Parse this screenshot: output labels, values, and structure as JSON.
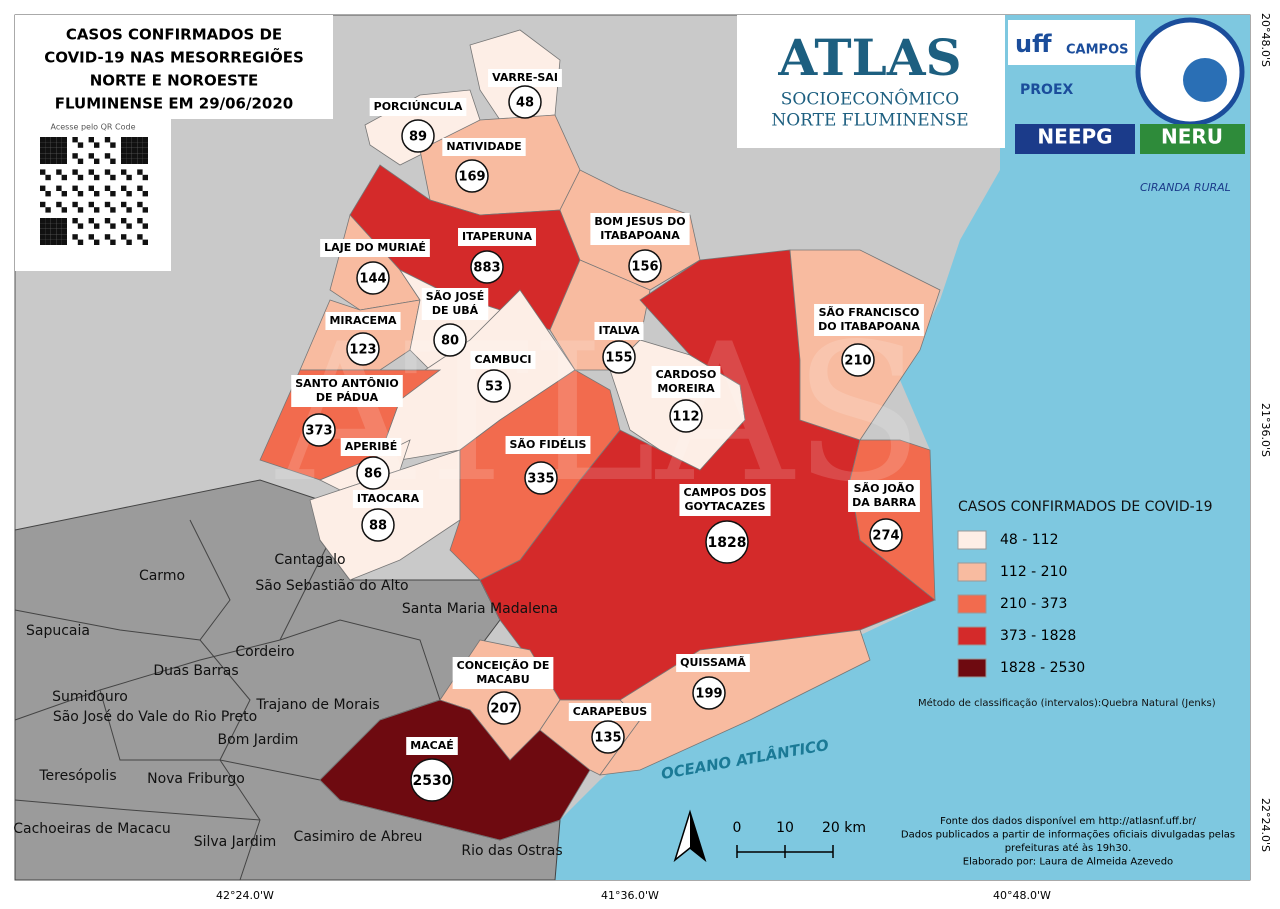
{
  "title": [
    "CASOS CONFIRMADOS DE",
    "COVID-19 NAS MESORREGIÕES",
    "NORTE E NOROESTE",
    "FLUMINENSE EM 29/06/2020"
  ],
  "qr_caption": "Acesse pelo QR Code",
  "logos": {
    "atlas": "ATLAS",
    "atlas_sub1": "SOCIOECONÔMICO",
    "atlas_sub2": "NORTE FLUMINENSE",
    "uff": "uff",
    "uff_campos": "CAMPOS",
    "proex": "PROEX",
    "neepg": "NEEPG",
    "neru": "NERU",
    "ciranda": "CIRANDA RURAL"
  },
  "municipalities": [
    {
      "name": [
        "VARRE-SAI"
      ],
      "cases": 48,
      "color": "#fdeee6"
    },
    {
      "name": [
        "PORCIÚNCULA"
      ],
      "cases": 89,
      "color": "#fdeee6"
    },
    {
      "name": [
        "NATIVIDADE"
      ],
      "cases": 169,
      "color": "#f8bba0"
    },
    {
      "name": [
        "ITAPERUNA"
      ],
      "cases": 883,
      "color": "#d42a2a"
    },
    {
      "name": [
        "BOM JESUS DO",
        "ITABAPOANA"
      ],
      "cases": 156,
      "color": "#f8bba0"
    },
    {
      "name": [
        "LAJE DO MURIAÉ"
      ],
      "cases": 144,
      "color": "#f8bba0"
    },
    {
      "name": [
        "MIRACEMA"
      ],
      "cases": 123,
      "color": "#f8bba0"
    },
    {
      "name": [
        "SÃO JOSÉ",
        "DE UBÁ"
      ],
      "cases": 80,
      "color": "#fdeee6"
    },
    {
      "name": [
        "CAMBUCI"
      ],
      "cases": 53,
      "color": "#fdeee6"
    },
    {
      "name": [
        "ITALVA"
      ],
      "cases": 155,
      "color": "#f8bba0"
    },
    {
      "name": [
        "CARDOSO",
        "MOREIRA"
      ],
      "cases": 112,
      "color": "#fdeee6"
    },
    {
      "name": [
        "CAMPOS DOS",
        "GOYTACAZES"
      ],
      "cases": 1828,
      "color": "#d42a2a"
    },
    {
      "name": [
        "SÃO FRANCISCO",
        "DO ITABAPOANA"
      ],
      "cases": 210,
      "color": "#f8bba0"
    },
    {
      "name": [
        "SÃO JOÃO",
        "DA BARRA"
      ],
      "cases": 274,
      "color": "#f26b4e"
    },
    {
      "name": [
        "SANTO ANTÔNIO",
        "DE PÁDUA"
      ],
      "cases": 373,
      "color": "#f26b4e"
    },
    {
      "name": [
        "APERIBÉ"
      ],
      "cases": 86,
      "color": "#fdeee6"
    },
    {
      "name": [
        "ITAOCARA"
      ],
      "cases": 88,
      "color": "#fdeee6"
    },
    {
      "name": [
        "SÃO FIDÉLIS"
      ],
      "cases": 335,
      "color": "#f26b4e"
    },
    {
      "name": [
        "CONCEIÇÃO DE",
        "MACABU"
      ],
      "cases": 207,
      "color": "#f8bba0"
    },
    {
      "name": [
        "MACAÉ"
      ],
      "cases": 2530,
      "color": "#6e0a10"
    },
    {
      "name": [
        "CARAPEBUS"
      ],
      "cases": 135,
      "color": "#f8bba0"
    },
    {
      "name": [
        "QUISSAMÃ"
      ],
      "cases": 199,
      "color": "#f8bba0"
    }
  ],
  "legend": {
    "title": "CASOS CONFIRMADOS DE COVID-19",
    "classes": [
      {
        "label": "48 - 112",
        "color": "#fdeee6"
      },
      {
        "label": "112 - 210",
        "color": "#f8bba0"
      },
      {
        "label": "210 - 373",
        "color": "#f26b4e"
      },
      {
        "label": "373 - 1828",
        "color": "#d42a2a"
      },
      {
        "label": "1828 - 2530",
        "color": "#6e0a10"
      }
    ]
  },
  "method": "Método de classificação (intervalos):Quebra Natural (Jenks)",
  "neighbors": [
    "Cantagalo",
    "São Sebastião do Alto",
    "Carmo",
    "Santa Maria Madalena",
    "Sapucaia",
    "Cordeiro",
    "Duas Barras",
    "Sumidouro",
    "São José do Vale do Rio Preto",
    "Trajano de Morais",
    "Bom Jardim",
    "Teresópolis",
    "Nova Friburgo",
    "Cachoeiras de Macacu",
    "Silva Jardim",
    "Casimiro de Abreu",
    "Rio das Ostras"
  ],
  "ocean": "OCEANO ATLÂNTICO",
  "scale": [
    "0",
    "10",
    "20 km"
  ],
  "coords": {
    "bottom": [
      "42°24.0'W",
      "41°36.0'W",
      "40°48.0'W"
    ],
    "right": [
      "20°48.0'S",
      "21°36.0'S",
      "22°24.0'S"
    ]
  },
  "source": [
    "Fonte dos dados disponível em http://atlasnf.uff.br/",
    "Dados publicados a partir de informações oficiais divulgadas pelas",
    "prefeituras até às 19h30.",
    "Elaborado por: Laura de Almeida Azevedo"
  ]
}
